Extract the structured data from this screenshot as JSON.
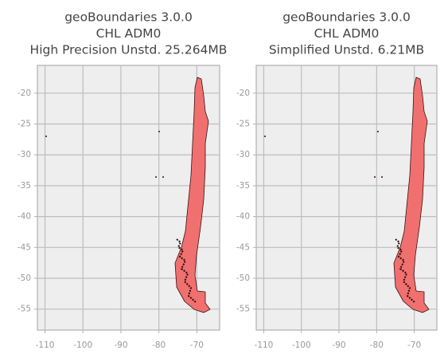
{
  "chart_data": [
    {
      "type": "map",
      "title": [
        "geoBoundaries 3.0.0",
        "CHL ADM0",
        "High Precision Unstd. 25.264MB"
      ],
      "color": "#f07070",
      "xlim": [
        -112,
        -64
      ],
      "ylim": [
        -58.4,
        -15.5
      ],
      "xticks": [
        -110,
        -100,
        -90,
        -80,
        -70
      ],
      "yticks": [
        -20,
        -25,
        -30,
        -35,
        -40,
        -45,
        -50,
        -55
      ],
      "grid": true
    },
    {
      "type": "map",
      "title": [
        "geoBoundaries 3.0.0",
        "CHL ADM0",
        "Simplified Unstd. 6.21MB"
      ],
      "color": "#f07070",
      "xlim": [
        -112,
        -64
      ],
      "ylim": [
        -58.4,
        -15.5
      ],
      "xticks": [
        -110,
        -100,
        -90,
        -80,
        -70
      ],
      "yticks": [
        -20,
        -25,
        -30,
        -35,
        -40,
        -45,
        -50,
        -55
      ],
      "grid": true
    }
  ]
}
